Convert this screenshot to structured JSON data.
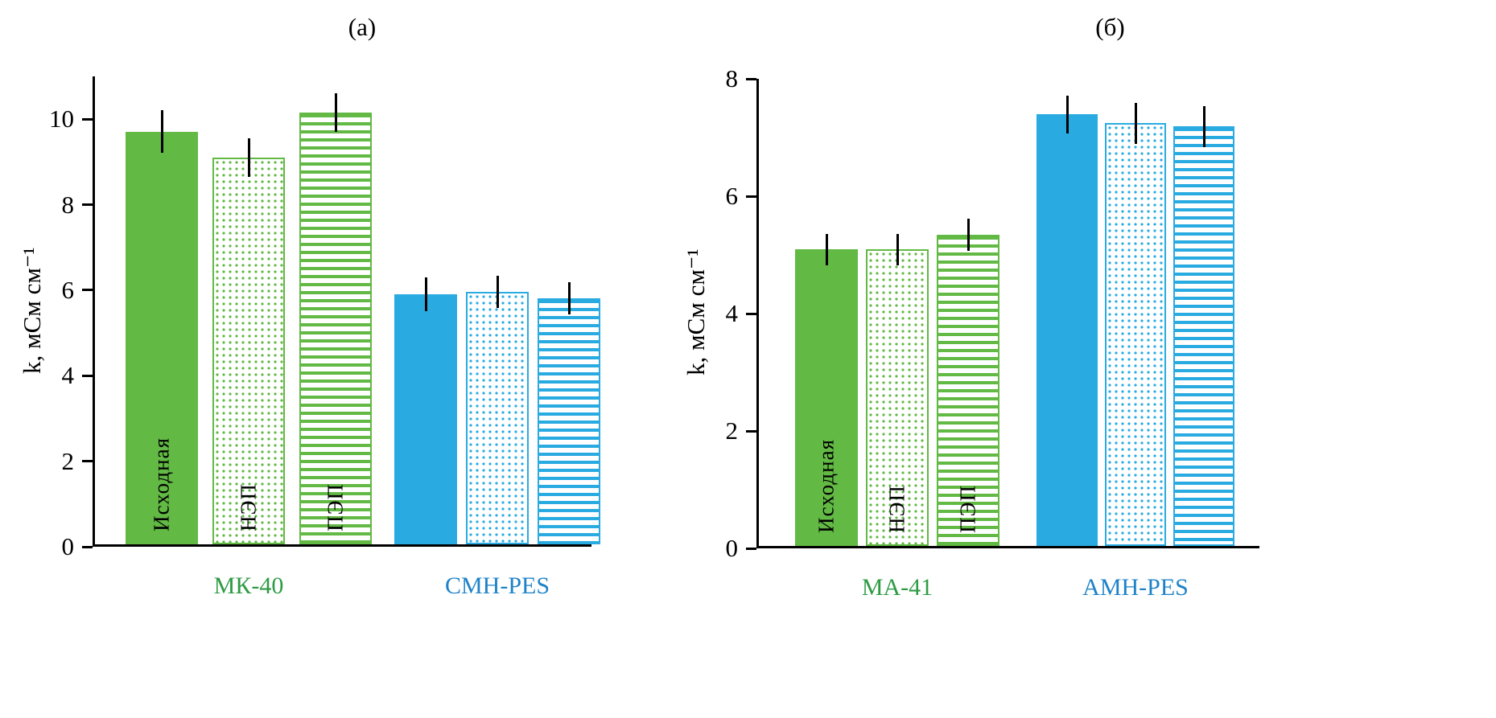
{
  "figure": {
    "background": "#ffffff"
  },
  "chart_data": [
    {
      "type": "bar",
      "title": "(а)",
      "ylabel": "k, мСм см⁻¹",
      "ylim": [
        0,
        11
      ],
      "yticks": [
        0,
        2,
        4,
        6,
        8,
        10
      ],
      "grid": false,
      "legend": "none",
      "error_bar_color": "#000000",
      "groups": [
        {
          "label": "МК-40",
          "label_color": "#2e9b44",
          "color": "#62b944",
          "bars": [
            {
              "label": "Исходная",
              "pattern": "solid",
              "value": 9.65,
              "error": 0.5
            },
            {
              "label": "НЭП",
              "pattern": "dots",
              "value": 9.05,
              "error": 0.45
            },
            {
              "label": "ПЭП",
              "pattern": "hstripes",
              "value": 10.1,
              "error": 0.45
            }
          ]
        },
        {
          "label": "СМН-PES",
          "label_color": "#1e82c8",
          "color": "#29abe2",
          "bars": [
            {
              "label": "",
              "pattern": "solid",
              "value": 5.85,
              "error": 0.4
            },
            {
              "label": "",
              "pattern": "dots",
              "value": 5.9,
              "error": 0.38
            },
            {
              "label": "",
              "pattern": "hstripes",
              "value": 5.75,
              "error": 0.38
            }
          ]
        }
      ]
    },
    {
      "type": "bar",
      "title": "(б)",
      "ylabel": "k, мСм см⁻¹",
      "ylim": [
        0,
        8
      ],
      "yticks": [
        0,
        2,
        4,
        6,
        8
      ],
      "grid": false,
      "legend": "none",
      "error_bar_color": "#000000",
      "groups": [
        {
          "label": "МА-41",
          "label_color": "#2e9b44",
          "color": "#62b944",
          "bars": [
            {
              "label": "Исходная",
              "pattern": "solid",
              "value": 5.05,
              "error": 0.27
            },
            {
              "label": "НЭП",
              "pattern": "dots",
              "value": 5.05,
              "error": 0.27
            },
            {
              "label": "ПЭП",
              "pattern": "hstripes",
              "value": 5.3,
              "error": 0.27
            }
          ]
        },
        {
          "label": "АМН-PES",
          "label_color": "#1e82c8",
          "color": "#29abe2",
          "bars": [
            {
              "label": "",
              "pattern": "solid",
              "value": 7.35,
              "error": 0.32
            },
            {
              "label": "",
              "pattern": "dots",
              "value": 7.2,
              "error": 0.35
            },
            {
              "label": "",
              "pattern": "hstripes",
              "value": 7.15,
              "error": 0.35
            }
          ]
        }
      ]
    }
  ]
}
